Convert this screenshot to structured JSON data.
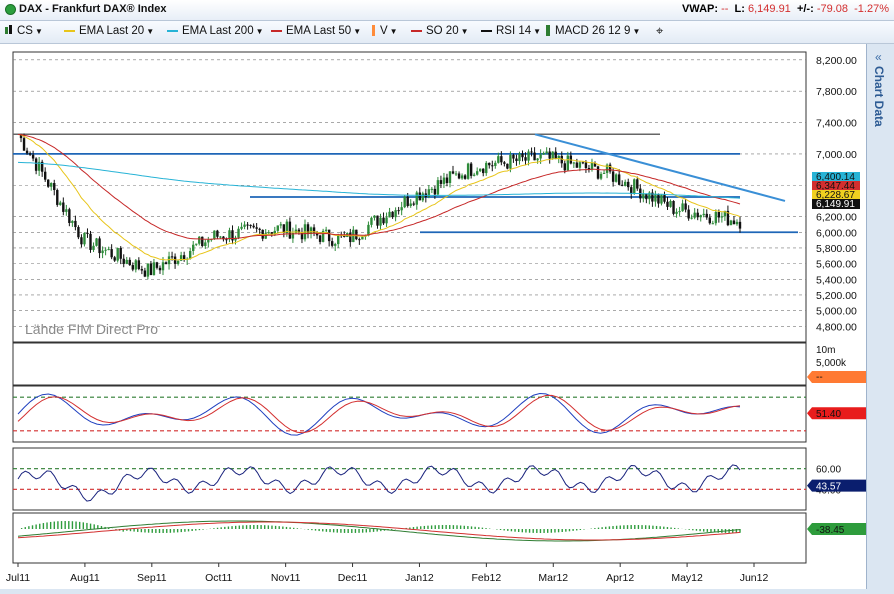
{
  "window": {
    "title": "DAX - Frankfurt DAX® Index",
    "vwap_label": "VWAP:",
    "vwap_value": "--",
    "low_label": "L:",
    "low_value": "6,149.91",
    "change_label": "+/-:",
    "change_value": "-79.08",
    "change_pct": "-1.27%"
  },
  "toolbar": [
    {
      "name": "cs",
      "label": "CS",
      "color": "#2e7d32",
      "icon": "candlestick-icon"
    },
    {
      "name": "ema20",
      "label": "EMA  Last 20",
      "color": "#e8c51a"
    },
    {
      "name": "ema200",
      "label": "EMA  Last 200",
      "color": "#27b3d6"
    },
    {
      "name": "ema50",
      "label": "EMA  Last 50",
      "color": "#c62828"
    },
    {
      "name": "volume",
      "label": "V",
      "color": "#ff8c3a",
      "icon": "volume-icon"
    },
    {
      "name": "so",
      "label": "SO  20",
      "color": "#c62828"
    },
    {
      "name": "rsi",
      "label": "RSI  14",
      "color": "#111111"
    },
    {
      "name": "macd",
      "label": "MACD  26 12 9",
      "color": "#2e7d32",
      "icon": "macd-icon"
    }
  ],
  "add_icon": "plus-crosshair-icon",
  "sidebar": {
    "label": "Chart Data",
    "icon": "chevron-left-icon"
  },
  "watermark": "Lähde FIM Direct Pro",
  "chart_data": {
    "type": "candlestick",
    "x_labels": [
      "Jul11",
      "Aug11",
      "Sep11",
      "Oct11",
      "Nov11",
      "Dec11",
      "Jan12",
      "Feb12",
      "Mar12",
      "Apr12",
      "May12",
      "Jun12"
    ],
    "price": {
      "ylim": [
        4600,
        8300
      ],
      "yticks": [
        "8,200.00",
        "7,800.00",
        "7,400.00",
        "7,000.00",
        "6,600.00",
        "6,200.00",
        "6,000.00",
        "5,800.00",
        "5,600.00",
        "5,400.00",
        "5,200.00",
        "5,000.00",
        "4,800.00"
      ],
      "monthly_close": [
        7250,
        5900,
        5500,
        5950,
        6050,
        5900,
        6450,
        6850,
        6950,
        6750,
        6300,
        6150
      ],
      "labels": [
        {
          "value": 6400.14,
          "text": "6,400.14",
          "color": "#27b3d6"
        },
        {
          "value": 6347.44,
          "text": "6,347.44",
          "color": "#d32f2f"
        },
        {
          "value": 6228.67,
          "text": "6,228.67",
          "color": "#f0d020"
        },
        {
          "value": 6149.91,
          "text": "6,149.91",
          "color": "#111111"
        }
      ]
    },
    "volume": {
      "ticks": [
        "10m",
        "5,000k"
      ],
      "label": "--",
      "label_color": "#ff7a33"
    },
    "stochastic": {
      "upper": 80,
      "lower": 20,
      "value": "51.40",
      "value_color": "#e81c1c"
    },
    "rsi": {
      "ticks": [
        "60.00",
        "40.00"
      ],
      "upper": 60,
      "lower": 40,
      "value": "43.57",
      "value_color": "#0a1e6e"
    },
    "macd": {
      "value": "-38.45",
      "value_color": "#2e9c3c"
    }
  }
}
